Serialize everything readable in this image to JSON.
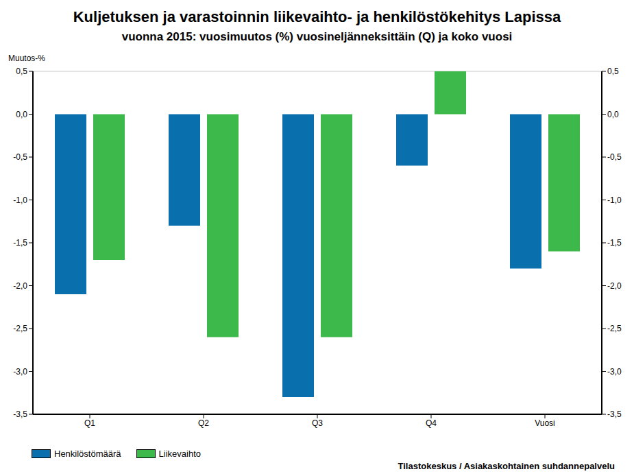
{
  "chart_data": {
    "type": "bar",
    "title": "Kuljetuksen ja varastoinnin liikevaihto- ja henkilöstökehitys Lapissa",
    "subtitle": "vuonna 2015: vuosimuutos (%) vuosineljänneksittäin (Q) ja koko vuosi",
    "y_label": "Muutos-%",
    "source": "Tilastokeskus / Asiakaskohtainen suhdannepalvelu",
    "categories": [
      "Q1",
      "Q2",
      "Q3",
      "Q4",
      "Vuosi"
    ],
    "series": [
      {
        "name": "Henkilöstömäärä",
        "color": "#0a6fad",
        "values": [
          -2.1,
          -1.3,
          -3.3,
          -0.6,
          -1.8
        ]
      },
      {
        "name": "Liikevaihto",
        "color": "#3cb94a",
        "values": [
          -1.7,
          -2.6,
          -2.6,
          0.5,
          -1.6
        ]
      }
    ],
    "ylim": [
      -3.5,
      0.5
    ],
    "yticks": [
      {
        "value": 0.5,
        "label": "0,5"
      },
      {
        "value": 0,
        "label": "0,0"
      },
      {
        "value": -0.5,
        "label": "-0,5"
      },
      {
        "value": -1,
        "label": "-1,0"
      },
      {
        "value": -1.5,
        "label": "-1,5"
      },
      {
        "value": -2,
        "label": "-2,0"
      },
      {
        "value": -2.5,
        "label": "-2,5"
      },
      {
        "value": -3,
        "label": "-3,0"
      },
      {
        "value": -3.5,
        "label": "-3,5"
      }
    ],
    "y2lim": [
      -3.5,
      0.5
    ],
    "y2ticks": [
      {
        "value": 0.5,
        "label": "0,5"
      },
      {
        "value": 0,
        "label": "0,0"
      },
      {
        "value": -0.5,
        "label": "-0,5"
      },
      {
        "value": -1,
        "label": "-1,0"
      },
      {
        "value": -1.5,
        "label": "-1,5"
      },
      {
        "value": -2,
        "label": "-2,0"
      },
      {
        "value": -2.5,
        "label": "-2,5"
      },
      {
        "value": -3,
        "label": "-3,0"
      },
      {
        "value": -3.5,
        "label": "-3,5"
      }
    ],
    "grid": true,
    "legend": "bottom-left"
  }
}
